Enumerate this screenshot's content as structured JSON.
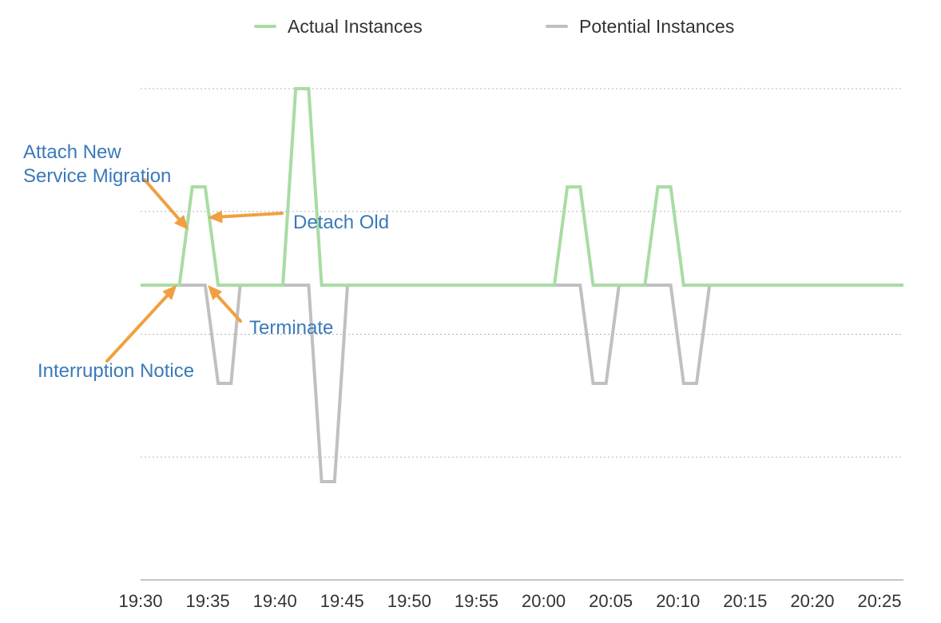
{
  "chart_data": {
    "type": "line",
    "title": "",
    "xlabel": "",
    "ylabel": "",
    "x_ticks": [
      "19:30",
      "19:35",
      "19:40",
      "19:45",
      "19:50",
      "19:55",
      "20:00",
      "20:05",
      "20:10",
      "20:15",
      "20:20",
      "20:25"
    ],
    "x_unit": "minutes after 19:30",
    "xlim": [
      0,
      59
    ],
    "ylim": [
      0,
      4
    ],
    "y_gridlines": [
      1,
      2,
      3,
      4
    ],
    "grid": "horizontal dotted",
    "legend_position": "top-center",
    "series": [
      {
        "name": "Actual Instances",
        "color": "#a8dca3",
        "points": [
          [
            0,
            2.4
          ],
          [
            3,
            2.4
          ],
          [
            4,
            3.2
          ],
          [
            5,
            3.2
          ],
          [
            6,
            2.4
          ],
          [
            11,
            2.4
          ],
          [
            12,
            4
          ],
          [
            13,
            4
          ],
          [
            14,
            2.4
          ],
          [
            32,
            2.4
          ],
          [
            33,
            3.2
          ],
          [
            34,
            3.2
          ],
          [
            35,
            2.4
          ],
          [
            39,
            2.4
          ],
          [
            40,
            3.2
          ],
          [
            41,
            3.2
          ],
          [
            42,
            2.4
          ],
          [
            59,
            2.4
          ]
        ]
      },
      {
        "name": "Potential Instances",
        "color": "#c0c0c0",
        "points": [
          [
            0,
            2.4
          ],
          [
            5,
            2.4
          ],
          [
            6,
            1.6
          ],
          [
            7,
            1.6
          ],
          [
            7.7,
            2.4
          ],
          [
            13,
            2.4
          ],
          [
            14,
            0.8
          ],
          [
            15,
            0.8
          ],
          [
            16,
            2.4
          ],
          [
            34,
            2.4
          ],
          [
            35,
            1.6
          ],
          [
            36,
            1.6
          ],
          [
            37,
            2.4
          ],
          [
            41,
            2.4
          ],
          [
            42,
            1.6
          ],
          [
            43,
            1.6
          ],
          [
            44,
            2.4
          ],
          [
            59,
            2.4
          ]
        ]
      }
    ],
    "annotations": [
      {
        "text": [
          "Attach New",
          "Service Migration"
        ],
        "arrow_to": [
          3.7,
          2.85
        ]
      },
      {
        "text": [
          "Detach Old"
        ],
        "arrow_to": [
          5.2,
          2.95
        ]
      },
      {
        "text": [
          "Terminate"
        ],
        "arrow_to": [
          5.2,
          2.4
        ]
      },
      {
        "text": [
          "Interruption Notice"
        ],
        "arrow_to": [
          2.8,
          2.4
        ]
      }
    ],
    "arrow_color": "#f0a040"
  }
}
